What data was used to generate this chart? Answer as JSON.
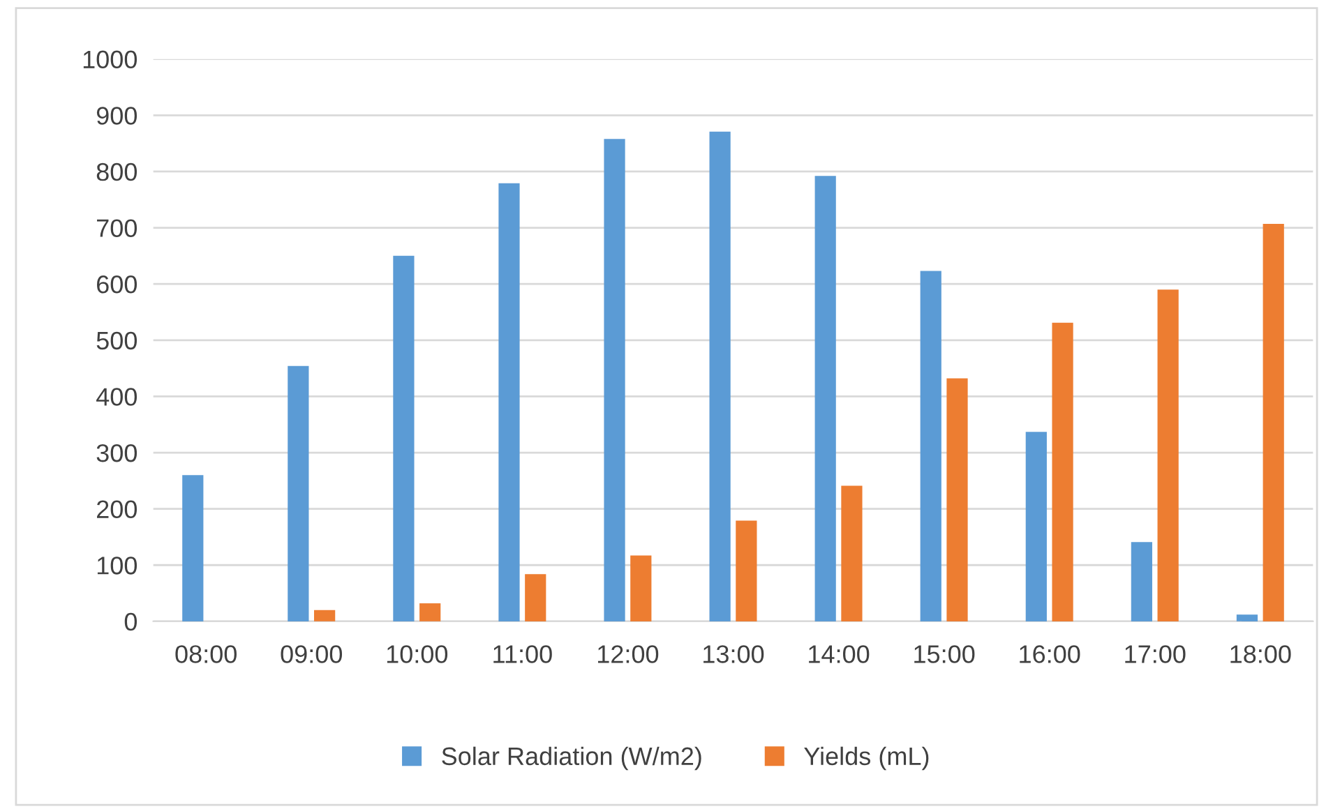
{
  "chart_data": {
    "type": "bar",
    "categories": [
      "08:00",
      "09:00",
      "10:00",
      "11:00",
      "12:00",
      "13:00",
      "14:00",
      "15:00",
      "16:00",
      "17:00",
      "18:00"
    ],
    "series": [
      {
        "name": "Solar Radiation (W/m2)",
        "color": "#5b9bd5",
        "values": [
          260,
          454,
          650,
          779,
          858,
          871,
          792,
          623,
          337,
          141,
          12
        ]
      },
      {
        "name": "Yields (mL)",
        "color": "#ed7d31",
        "values": [
          0,
          20,
          32,
          84,
          117,
          179,
          241,
          432,
          531,
          590,
          707
        ]
      }
    ],
    "ylim": [
      0,
      1000
    ],
    "yticks": [
      0,
      100,
      200,
      300,
      400,
      500,
      600,
      700,
      800,
      900,
      1000
    ],
    "grid": "y",
    "legend": "bottom"
  }
}
